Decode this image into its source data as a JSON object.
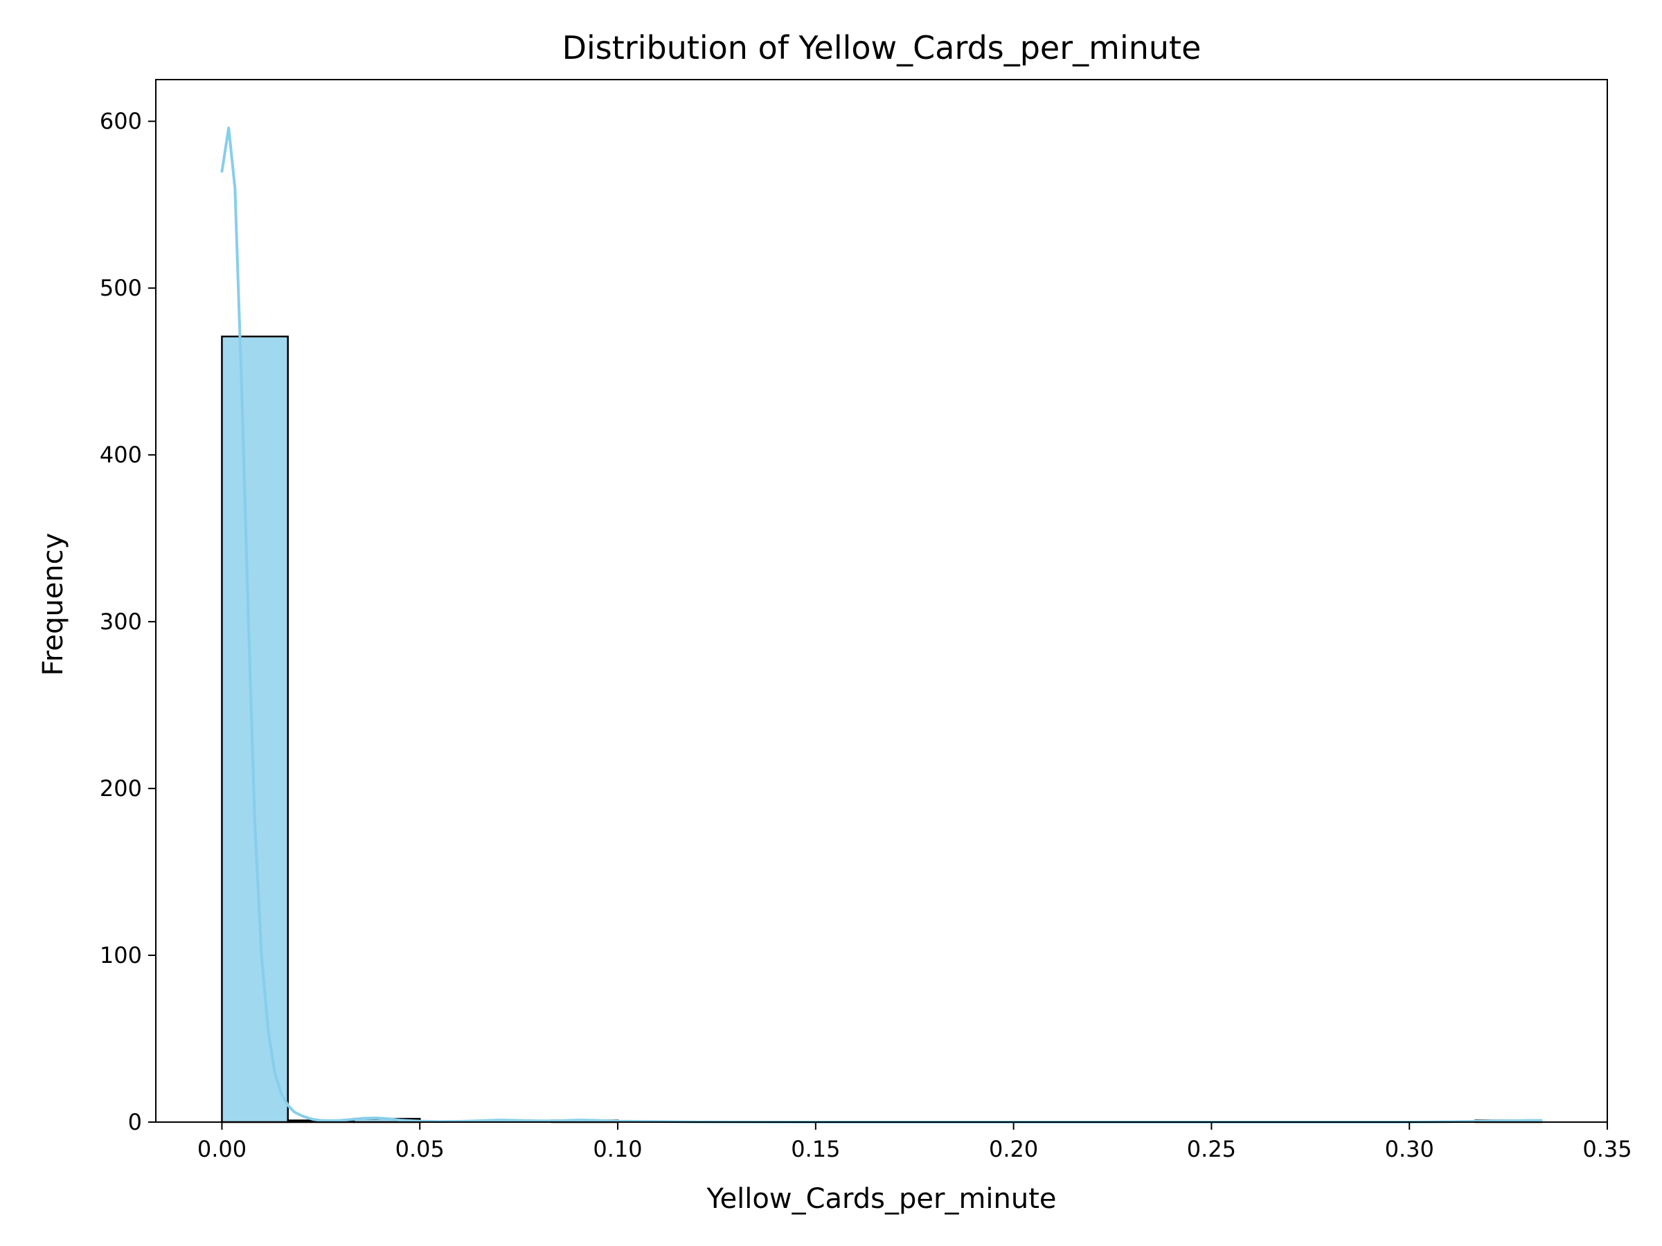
{
  "chart_data": {
    "type": "bar",
    "title": "Distribution of Yellow_Cards_per_minute",
    "xlabel": "Yellow_Cards_per_minute",
    "ylabel": "Frequency",
    "xlim": [
      -0.0167,
      0.35
    ],
    "ylim": [
      0,
      625
    ],
    "xticks": [
      0.0,
      0.05,
      0.1,
      0.15,
      0.2,
      0.25,
      0.3,
      0.35
    ],
    "xtick_labels": [
      "0.00",
      "0.05",
      "0.10",
      "0.15",
      "0.20",
      "0.25",
      "0.30",
      "0.35"
    ],
    "yticks": [
      0,
      100,
      200,
      300,
      400,
      500,
      600
    ],
    "ytick_labels": [
      "0",
      "100",
      "200",
      "300",
      "400",
      "500",
      "600"
    ],
    "bin_edges": [
      0.0,
      0.01667,
      0.03333,
      0.05,
      0.06667,
      0.08333,
      0.1,
      0.11667,
      0.13333,
      0.15,
      0.16667,
      0.18333,
      0.2,
      0.21667,
      0.23333,
      0.25,
      0.26667,
      0.28333,
      0.3,
      0.31667,
      0.33333
    ],
    "counts": [
      471,
      1,
      2,
      0,
      0,
      1,
      0,
      0,
      0,
      0,
      0,
      0,
      0,
      0,
      0,
      0,
      0,
      0,
      0,
      1
    ],
    "bar_color": "#a0d8ef",
    "bar_edge_color": "#000000",
    "kde": {
      "color": "#87ceeb",
      "x": [
        0.0,
        0.0017,
        0.0033,
        0.005,
        0.0067,
        0.0083,
        0.01,
        0.0117,
        0.0133,
        0.015,
        0.0167,
        0.0183,
        0.02,
        0.0217,
        0.0233,
        0.025,
        0.0275,
        0.03,
        0.033,
        0.036,
        0.039,
        0.042,
        0.045,
        0.05,
        0.055,
        0.06,
        0.065,
        0.07,
        0.075,
        0.08,
        0.085,
        0.09,
        0.095,
        0.1,
        0.12,
        0.15,
        0.2,
        0.25,
        0.3,
        0.31,
        0.32,
        0.325,
        0.33,
        0.3333
      ],
      "y": [
        570,
        596,
        560,
        440,
        300,
        180,
        100,
        55,
        30,
        17,
        10,
        6,
        4,
        2.5,
        1.5,
        1,
        0.8,
        1,
        1.6,
        2.3,
        2.5,
        2,
        1.2,
        0.5,
        0.3,
        0.4,
        0.8,
        1.2,
        1,
        0.7,
        0.8,
        1.2,
        1,
        0.5,
        0.1,
        0,
        0,
        0,
        0,
        0.2,
        0.6,
        0.8,
        0.9,
        1
      ]
    }
  }
}
